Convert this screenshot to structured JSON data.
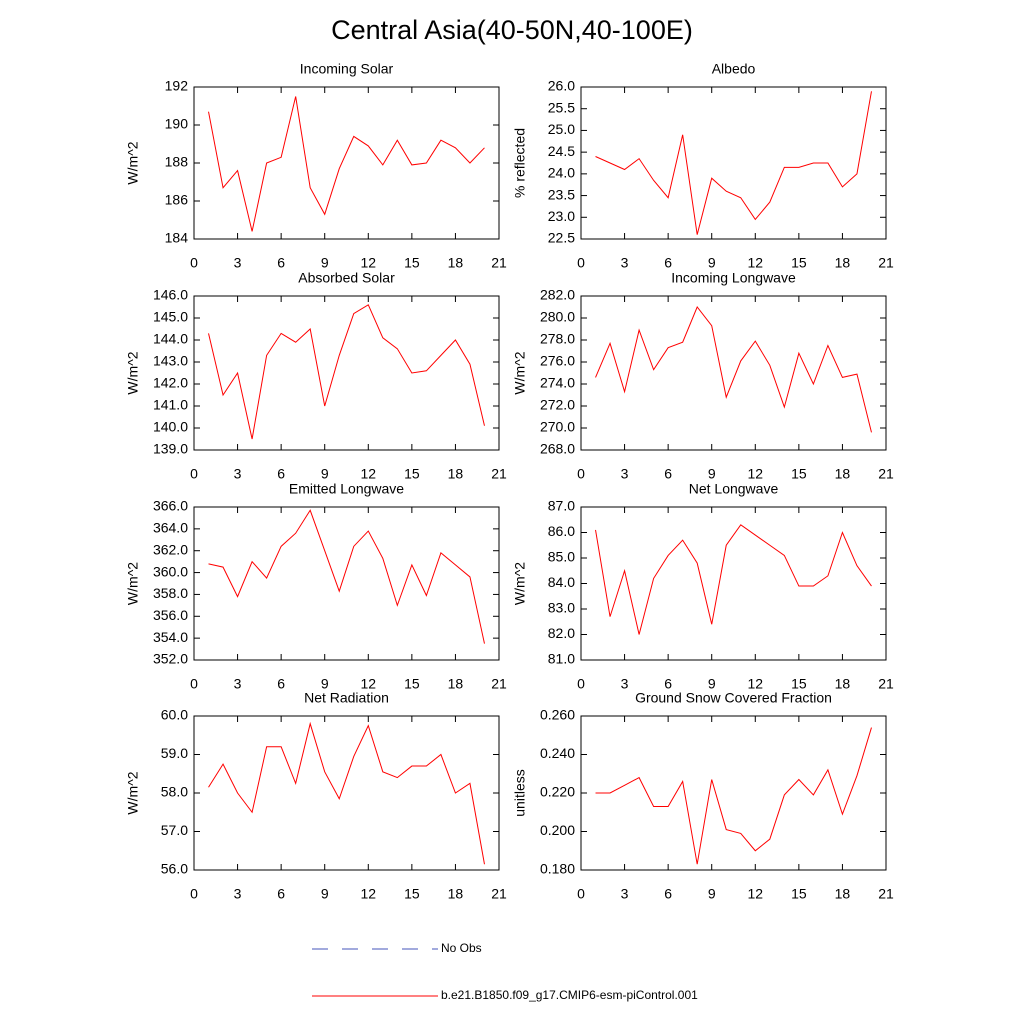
{
  "title": "Central Asia(40-50N,40-100E)",
  "legend": [
    {
      "label": "No Obs",
      "color": "#4455bb",
      "dashed": true
    },
    {
      "label": "b.e21.B1850.f09_g17.CMIP6-esm-piControl.001",
      "color": "#ff0000",
      "dashed": false
    }
  ],
  "chart_data": [
    {
      "type": "line",
      "title": "Incoming Solar",
      "y_label": "W/m^2",
      "color": "#ff0000",
      "x": [
        1,
        2,
        3,
        4,
        5,
        6,
        7,
        8,
        9,
        10,
        11,
        12,
        13,
        14,
        15,
        16,
        17,
        18,
        19,
        20
      ],
      "values": [
        190.7,
        186.7,
        187.6,
        184.4,
        188.0,
        188.3,
        191.5,
        186.7,
        185.3,
        187.7,
        189.4,
        188.9,
        187.9,
        189.2,
        187.9,
        188.0,
        189.2,
        188.8,
        188.0,
        188.8
      ],
      "xlim": [
        0,
        21
      ],
      "xticks": [
        0,
        3,
        6,
        9,
        12,
        15,
        18,
        21
      ],
      "ylim": [
        184,
        192
      ],
      "yticks": [
        184,
        186,
        188,
        190,
        192
      ]
    },
    {
      "type": "line",
      "title": "Albedo",
      "y_label": "% reflected",
      "color": "#ff0000",
      "x": [
        1,
        2,
        3,
        4,
        5,
        6,
        7,
        8,
        9,
        10,
        11,
        12,
        13,
        14,
        15,
        16,
        17,
        18,
        19,
        20
      ],
      "values": [
        24.4,
        24.25,
        24.1,
        24.35,
        23.85,
        23.45,
        24.9,
        22.6,
        23.9,
        23.6,
        23.45,
        22.95,
        23.35,
        24.15,
        24.15,
        24.25,
        24.25,
        23.7,
        24.0,
        25.9
      ],
      "xlim": [
        0,
        21
      ],
      "xticks": [
        0,
        3,
        6,
        9,
        12,
        15,
        18,
        21
      ],
      "ylim": [
        22.5,
        26.0
      ],
      "yticks": [
        22.5,
        {
          "value": 23,
          "label": "23.0"
        },
        23.5,
        {
          "value": 24,
          "label": "24.0"
        },
        24.5,
        {
          "value": 25,
          "label": "25.0"
        },
        25.5,
        {
          "value": 26,
          "label": "26.0"
        }
      ]
    },
    {
      "type": "line",
      "title": "Absorbed Solar",
      "y_label": "W/m^2",
      "color": "#ff0000",
      "x": [
        1,
        2,
        3,
        4,
        5,
        6,
        7,
        8,
        9,
        10,
        11,
        12,
        13,
        14,
        15,
        16,
        17,
        18,
        19,
        20
      ],
      "values": [
        144.3,
        141.5,
        142.5,
        139.5,
        143.3,
        144.3,
        143.9,
        144.5,
        141.0,
        143.3,
        145.2,
        145.6,
        144.1,
        143.6,
        142.5,
        142.6,
        143.3,
        144.0,
        142.9,
        140.1
      ],
      "xlim": [
        0,
        21
      ],
      "xticks": [
        0,
        3,
        6,
        9,
        12,
        15,
        18,
        21
      ],
      "ylim": [
        139,
        146
      ],
      "yticks": [
        {
          "value": 139,
          "label": "139.0"
        },
        {
          "value": 140,
          "label": "140.0"
        },
        {
          "value": 141,
          "label": "141.0"
        },
        {
          "value": 142,
          "label": "142.0"
        },
        {
          "value": 143,
          "label": "143.0"
        },
        {
          "value": 144,
          "label": "144.0"
        },
        {
          "value": 145,
          "label": "145.0"
        },
        {
          "value": 146,
          "label": "146.0"
        }
      ]
    },
    {
      "type": "line",
      "title": "Incoming Longwave",
      "y_label": "W/m^2",
      "color": "#ff0000",
      "x": [
        1,
        2,
        3,
        4,
        5,
        6,
        7,
        8,
        9,
        10,
        11,
        12,
        13,
        14,
        15,
        16,
        17,
        18,
        19,
        20
      ],
      "values": [
        274.6,
        277.7,
        273.3,
        278.9,
        275.3,
        277.3,
        277.8,
        281.0,
        279.3,
        272.8,
        276.1,
        277.9,
        275.7,
        271.9,
        276.8,
        274.0,
        277.5,
        274.6,
        274.9,
        269.6
      ],
      "xlim": [
        0,
        21
      ],
      "xticks": [
        0,
        3,
        6,
        9,
        12,
        15,
        18,
        21
      ],
      "ylim": [
        268,
        282
      ],
      "yticks": [
        {
          "value": 268,
          "label": "268.0"
        },
        {
          "value": 270,
          "label": "270.0"
        },
        {
          "value": 272,
          "label": "272.0"
        },
        {
          "value": 274,
          "label": "274.0"
        },
        {
          "value": 276,
          "label": "276.0"
        },
        {
          "value": 278,
          "label": "278.0"
        },
        {
          "value": 280,
          "label": "280.0"
        },
        {
          "value": 282,
          "label": "282.0"
        }
      ]
    },
    {
      "type": "line",
      "title": "Emitted Longwave",
      "y_label": "W/m^2",
      "color": "#ff0000",
      "x": [
        1,
        2,
        3,
        4,
        5,
        6,
        7,
        8,
        9,
        10,
        11,
        12,
        13,
        14,
        15,
        16,
        17,
        18,
        19,
        20
      ],
      "values": [
        360.8,
        360.5,
        357.8,
        361.0,
        359.5,
        362.4,
        363.6,
        365.7,
        362.0,
        358.3,
        362.4,
        363.8,
        361.3,
        357.0,
        360.7,
        357.9,
        361.8,
        360.7,
        359.6,
        353.5
      ],
      "xlim": [
        0,
        21
      ],
      "xticks": [
        0,
        3,
        6,
        9,
        12,
        15,
        18,
        21
      ],
      "ylim": [
        352,
        366
      ],
      "yticks": [
        {
          "value": 352,
          "label": "352.0"
        },
        {
          "value": 354,
          "label": "354.0"
        },
        {
          "value": 356,
          "label": "356.0"
        },
        {
          "value": 358,
          "label": "358.0"
        },
        {
          "value": 360,
          "label": "360.0"
        },
        {
          "value": 362,
          "label": "362.0"
        },
        {
          "value": 364,
          "label": "364.0"
        },
        {
          "value": 366,
          "label": "366.0"
        }
      ]
    },
    {
      "type": "line",
      "title": "Net Longwave",
      "y_label": "W/m^2",
      "color": "#ff0000",
      "x": [
        1,
        2,
        3,
        4,
        5,
        6,
        7,
        8,
        9,
        10,
        11,
        12,
        13,
        14,
        15,
        16,
        17,
        18,
        19,
        20
      ],
      "values": [
        86.1,
        82.7,
        84.5,
        82.0,
        84.2,
        85.1,
        85.7,
        84.8,
        82.4,
        85.5,
        86.3,
        85.9,
        85.5,
        85.1,
        83.9,
        83.9,
        84.3,
        86.0,
        84.7,
        83.9
      ],
      "xlim": [
        0,
        21
      ],
      "xticks": [
        0,
        3,
        6,
        9,
        12,
        15,
        18,
        21
      ],
      "ylim": [
        81,
        87
      ],
      "yticks": [
        {
          "value": 81,
          "label": "81.0"
        },
        {
          "value": 82,
          "label": "82.0"
        },
        {
          "value": 83,
          "label": "83.0"
        },
        {
          "value": 84,
          "label": "84.0"
        },
        {
          "value": 85,
          "label": "85.0"
        },
        {
          "value": 86,
          "label": "86.0"
        },
        {
          "value": 87,
          "label": "87.0"
        }
      ]
    },
    {
      "type": "line",
      "title": "Net Radiation",
      "y_label": "W/m^2",
      "color": "#ff0000",
      "x": [
        1,
        2,
        3,
        4,
        5,
        6,
        7,
        8,
        9,
        10,
        11,
        12,
        13,
        14,
        15,
        16,
        17,
        18,
        19,
        20
      ],
      "values": [
        58.15,
        58.75,
        58.0,
        57.5,
        59.2,
        59.2,
        58.25,
        59.8,
        58.55,
        57.85,
        58.95,
        59.75,
        58.55,
        58.4,
        58.7,
        58.7,
        59.0,
        58.0,
        58.25,
        56.15
      ],
      "xlim": [
        0,
        21
      ],
      "xticks": [
        0,
        3,
        6,
        9,
        12,
        15,
        18,
        21
      ],
      "ylim": [
        56,
        60
      ],
      "yticks": [
        {
          "value": 56,
          "label": "56.0"
        },
        {
          "value": 57,
          "label": "57.0"
        },
        {
          "value": 58,
          "label": "58.0"
        },
        {
          "value": 59,
          "label": "59.0"
        },
        {
          "value": 60,
          "label": "60.0"
        }
      ]
    },
    {
      "type": "line",
      "title": "Ground Snow Covered Fraction",
      "y_label": "unitless",
      "color": "#ff0000",
      "x": [
        1,
        2,
        3,
        4,
        5,
        6,
        7,
        8,
        9,
        10,
        11,
        12,
        13,
        14,
        15,
        16,
        17,
        18,
        19,
        20
      ],
      "values": [
        0.22,
        0.22,
        0.224,
        0.228,
        0.213,
        0.213,
        0.226,
        0.183,
        0.227,
        0.201,
        0.199,
        0.19,
        0.196,
        0.219,
        0.227,
        0.219,
        0.232,
        0.209,
        0.229,
        0.254
      ],
      "xlim": [
        0,
        21
      ],
      "xticks": [
        0,
        3,
        6,
        9,
        12,
        15,
        18,
        21
      ],
      "ylim": [
        0.18,
        0.26
      ],
      "yticks": [
        {
          "value": 0.18,
          "label": "0.180"
        },
        {
          "value": 0.2,
          "label": "0.200"
        },
        {
          "value": 0.22,
          "label": "0.220"
        },
        {
          "value": 0.24,
          "label": "0.240"
        },
        {
          "value": 0.26,
          "label": "0.260"
        }
      ]
    }
  ]
}
